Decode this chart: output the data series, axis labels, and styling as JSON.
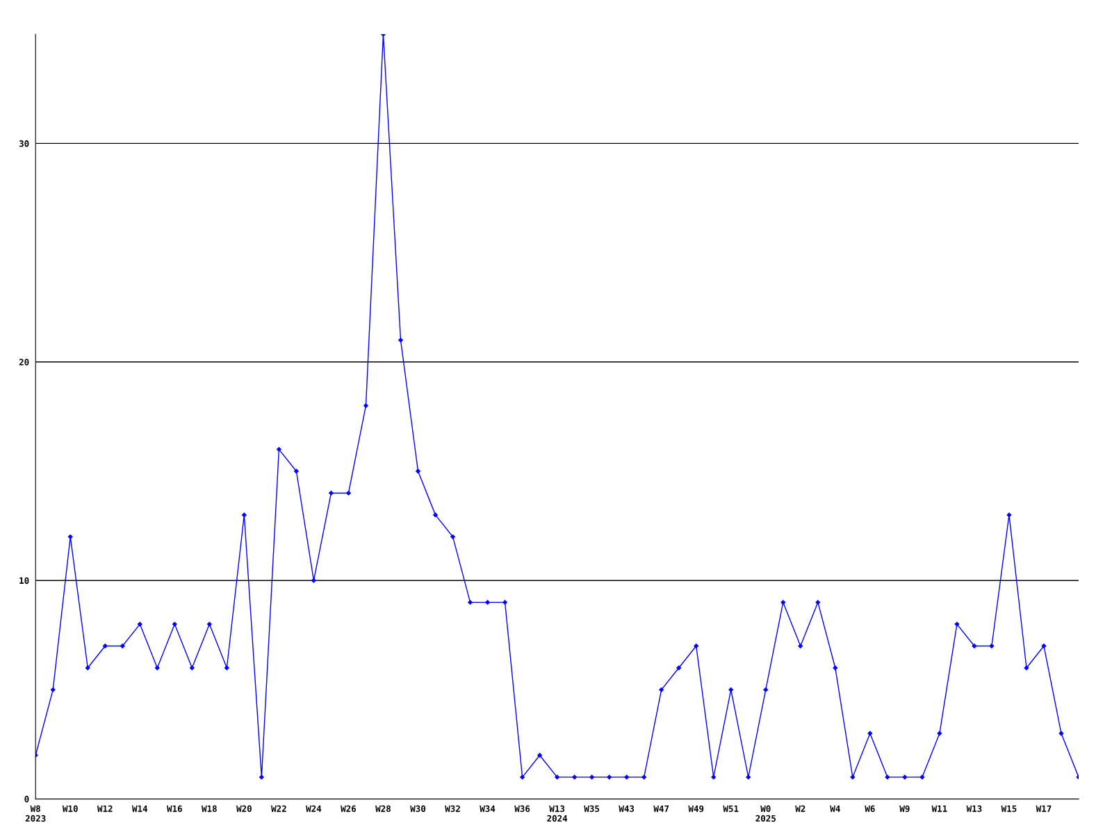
{
  "chart_data": {
    "type": "line",
    "categories": [
      "W8\n2023",
      null,
      "W10",
      null,
      "W12",
      null,
      "W14",
      null,
      "W16",
      null,
      "W18",
      null,
      "W20",
      null,
      "W22",
      null,
      "W24",
      null,
      "W26",
      null,
      "W28",
      null,
      "W30",
      null,
      "W32",
      null,
      "W34",
      null,
      "W36",
      null,
      "W13\n2024",
      null,
      "W35",
      null,
      "W43",
      null,
      "W47",
      null,
      "W49",
      null,
      "W51",
      null,
      "W0\n2025",
      null,
      "W2",
      null,
      "W4",
      null,
      "W6",
      null,
      "W9",
      null,
      "W11",
      null,
      "W13",
      null,
      "W15",
      null,
      "W17",
      null,
      null
    ],
    "series": [
      {
        "color": "#0000ff",
        "values": [
          2,
          5,
          12,
          6,
          7,
          7,
          8,
          6,
          8,
          6,
          8,
          6,
          13,
          1,
          16,
          15,
          10,
          14,
          14,
          18,
          35,
          21,
          15,
          13,
          12,
          9,
          9,
          9,
          1,
          2,
          1,
          1,
          1,
          1,
          1,
          1,
          5,
          6,
          7,
          1,
          5,
          1,
          5,
          9,
          7,
          9,
          6,
          1,
          3,
          1,
          1,
          1,
          3,
          8,
          7,
          7,
          13,
          6,
          7,
          3,
          1
        ]
      }
    ],
    "ylim": [
      0,
      35
    ],
    "yticks": [
      0,
      10,
      20,
      30
    ],
    "grid": "y",
    "marker": "diamond",
    "line_style": "solid"
  }
}
